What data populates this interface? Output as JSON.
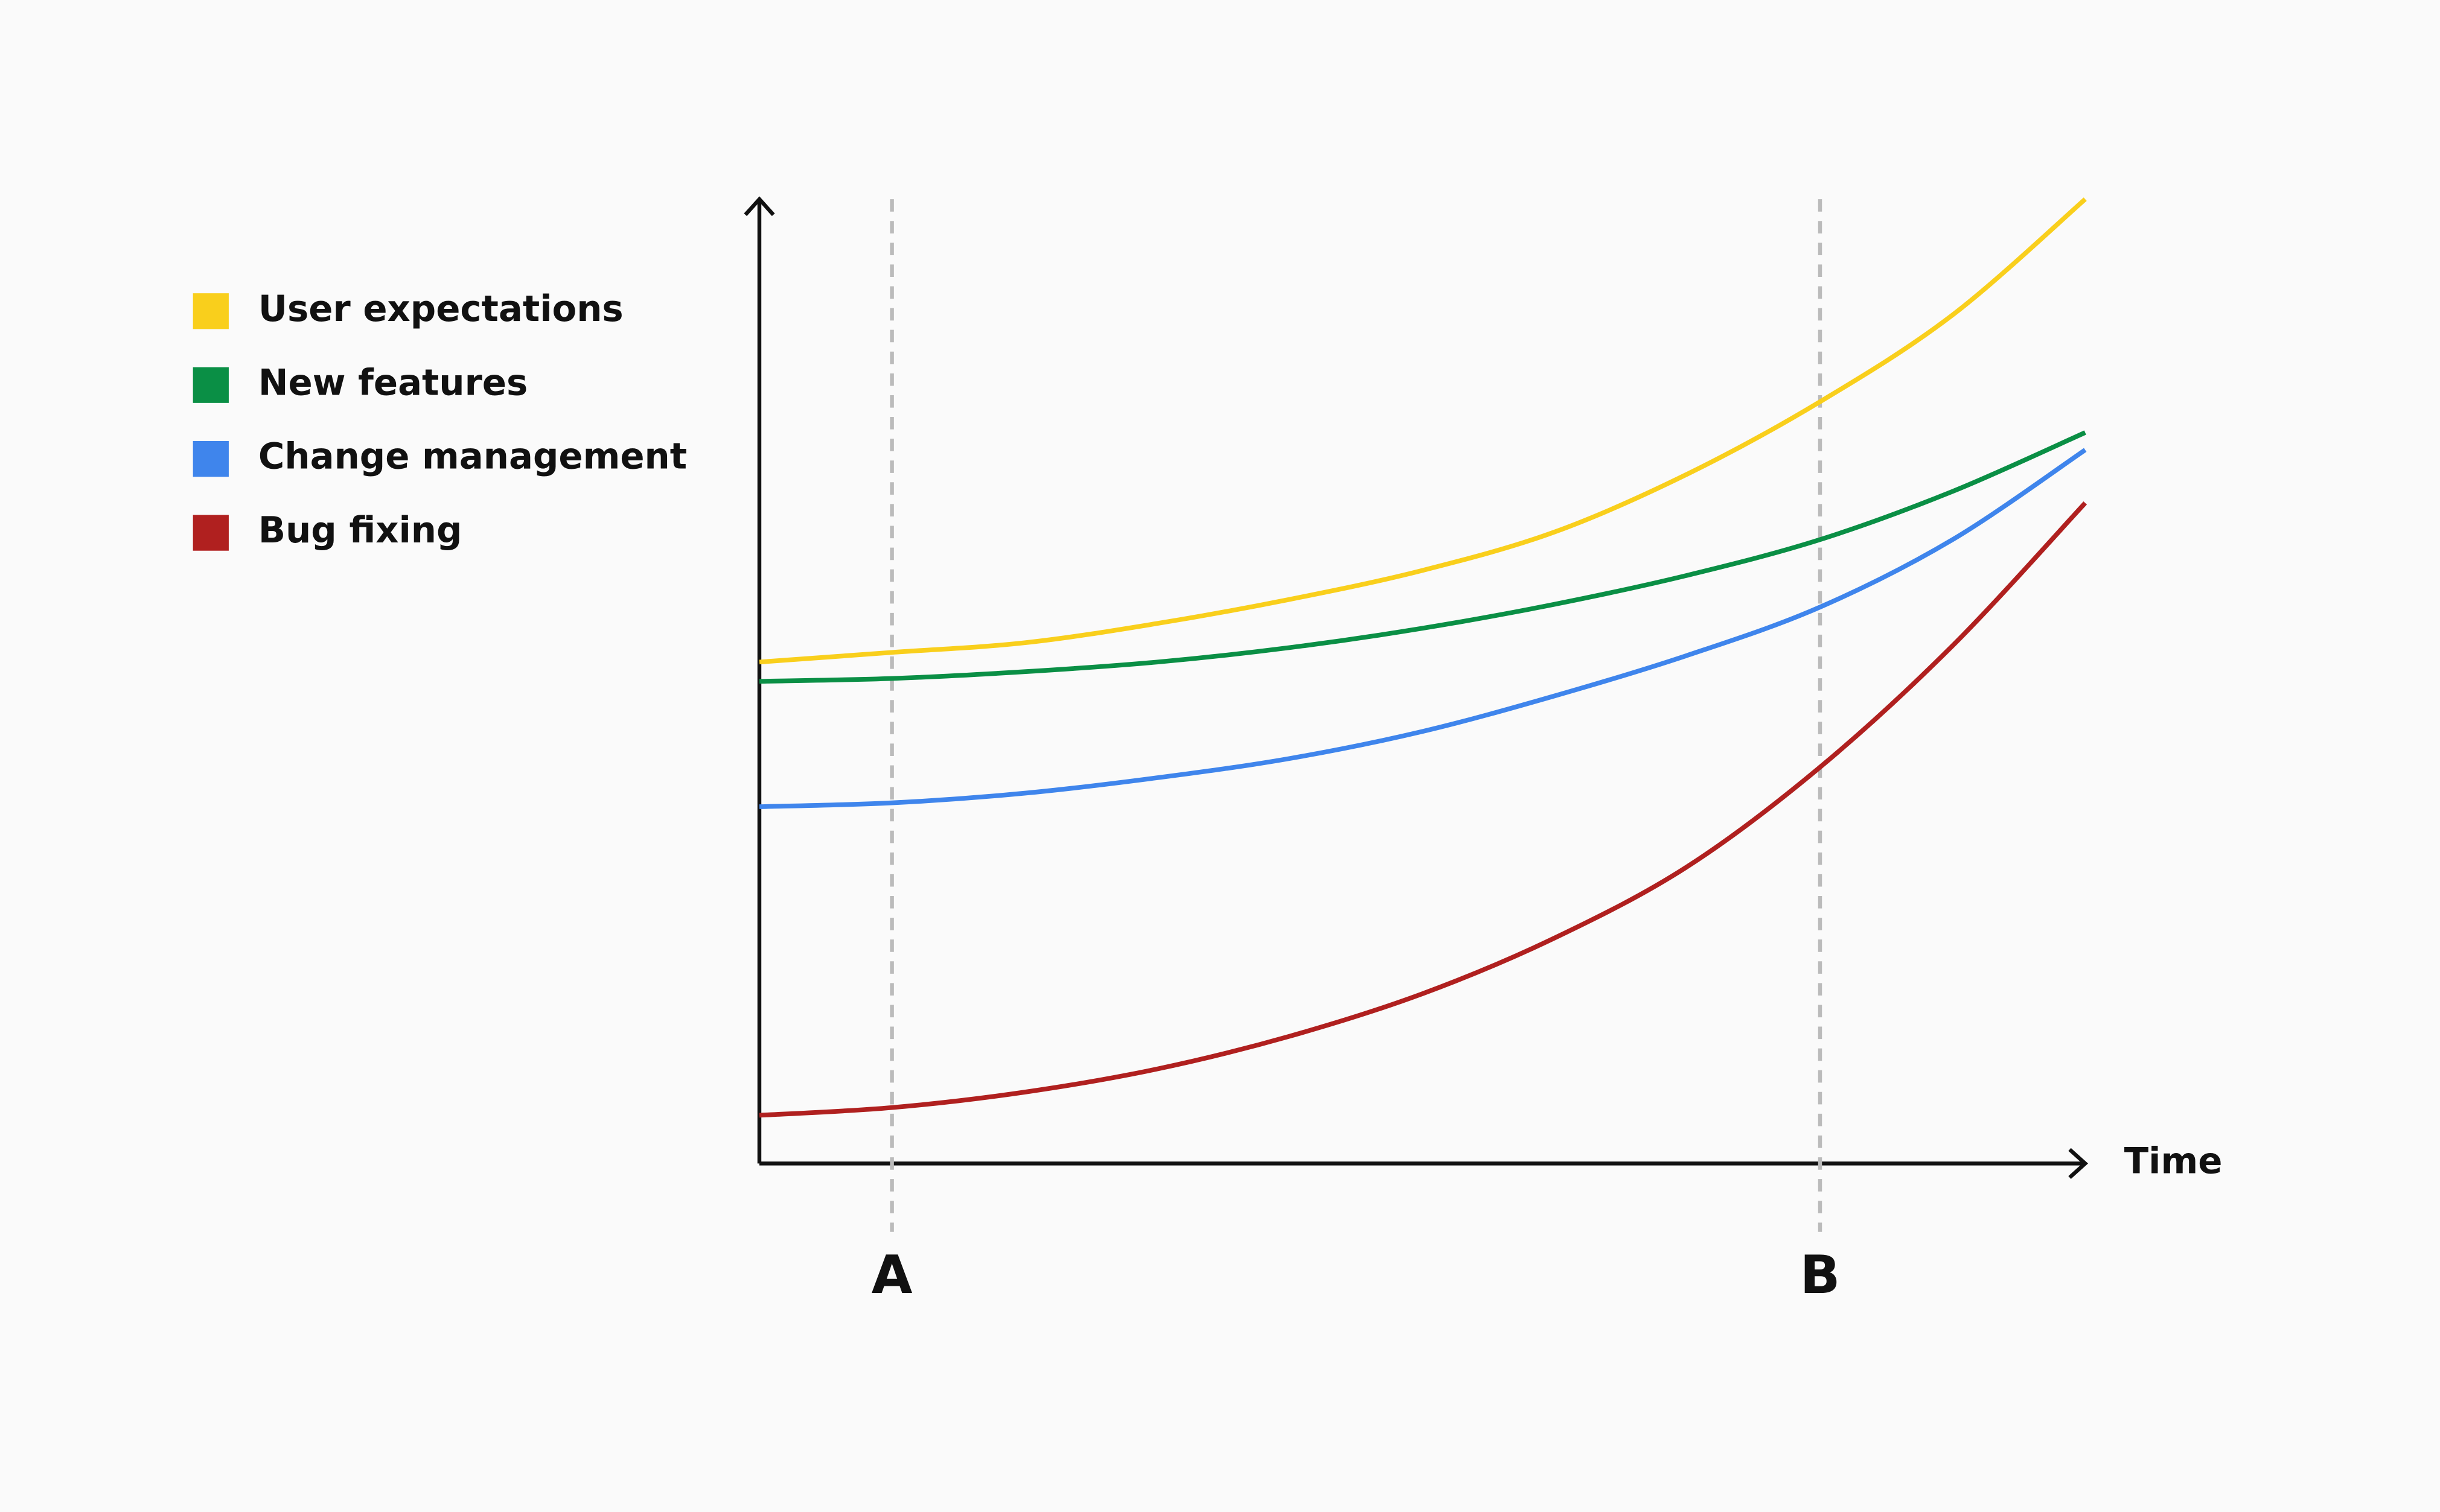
{
  "chart_data": {
    "type": "line",
    "x_label": "Time",
    "x": [
      0,
      1,
      2,
      3,
      4,
      5,
      6,
      7,
      8,
      9,
      10
    ],
    "xlim": [
      0,
      10
    ],
    "ylim": [
      0,
      100
    ],
    "series": [
      {
        "name": "User expectations",
        "color": "#f9cf1c",
        "values": [
          52,
          53,
          54,
          56,
          58.5,
          61.5,
          65.5,
          71.5,
          79,
          88,
          100
        ]
      },
      {
        "name": "New features",
        "color": "#0a8f45",
        "values": [
          50,
          50.3,
          51,
          52,
          53.5,
          55.5,
          58,
          61,
          64.7,
          69.7,
          75.8
        ]
      },
      {
        "name": "Change management",
        "color": "#3f85ec",
        "values": [
          37,
          37.4,
          38.4,
          40,
          42,
          44.8,
          48.5,
          52.7,
          57.7,
          64.7,
          74
        ]
      },
      {
        "name": "Bug fixing",
        "color": "#b0201f",
        "values": [
          5,
          5.8,
          7.4,
          9.8,
          13.2,
          17.6,
          23.4,
          30.8,
          41.1,
          53.7,
          68.5
        ]
      }
    ],
    "markers": [
      {
        "label": "A",
        "x": 1
      },
      {
        "label": "B",
        "x": 8
      }
    ]
  }
}
